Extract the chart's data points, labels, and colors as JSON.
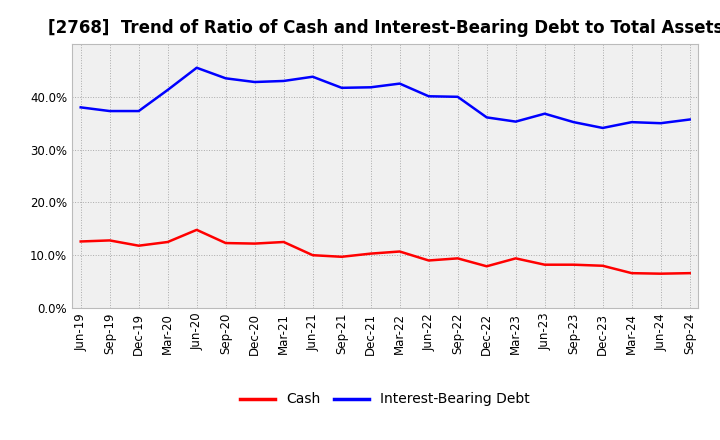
{
  "title": "[2768]  Trend of Ratio of Cash and Interest-Bearing Debt to Total Assets",
  "labels": [
    "Jun-19",
    "Sep-19",
    "Dec-19",
    "Mar-20",
    "Jun-20",
    "Sep-20",
    "Dec-20",
    "Mar-21",
    "Jun-21",
    "Sep-21",
    "Dec-21",
    "Mar-22",
    "Jun-22",
    "Sep-22",
    "Dec-22",
    "Mar-23",
    "Jun-23",
    "Sep-23",
    "Dec-23",
    "Mar-24",
    "Jun-24",
    "Sep-24"
  ],
  "cash": [
    0.126,
    0.128,
    0.118,
    0.125,
    0.148,
    0.123,
    0.122,
    0.125,
    0.1,
    0.097,
    0.103,
    0.107,
    0.09,
    0.094,
    0.079,
    0.094,
    0.082,
    0.082,
    0.08,
    0.066,
    0.065,
    0.066
  ],
  "interest_bearing_debt": [
    0.38,
    0.373,
    0.373,
    0.413,
    0.455,
    0.435,
    0.428,
    0.43,
    0.438,
    0.417,
    0.418,
    0.425,
    0.401,
    0.4,
    0.361,
    0.353,
    0.368,
    0.352,
    0.341,
    0.352,
    0.35,
    0.357
  ],
  "cash_color": "#ff0000",
  "debt_color": "#0000ff",
  "background_color": "#ffffff",
  "plot_bg_color": "#f0f0f0",
  "grid_color": "#aaaaaa",
  "ylim": [
    0.0,
    0.5
  ],
  "yticks": [
    0.0,
    0.1,
    0.2,
    0.3,
    0.4
  ],
  "legend_cash": "Cash",
  "legend_debt": "Interest-Bearing Debt",
  "title_fontsize": 12,
  "axis_fontsize": 8.5,
  "legend_fontsize": 10
}
